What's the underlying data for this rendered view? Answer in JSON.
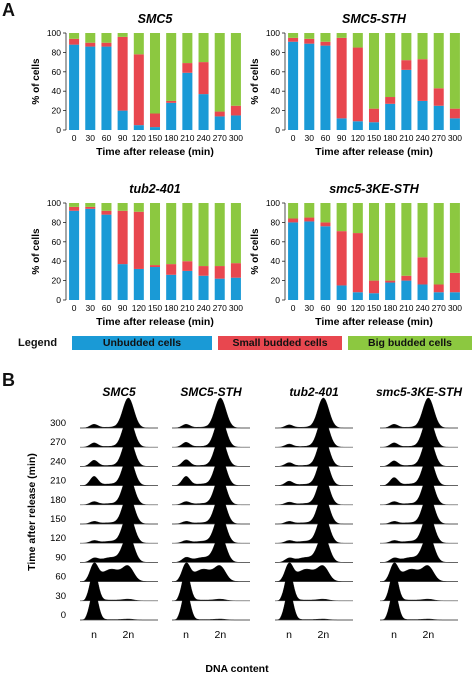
{
  "panels": {
    "a_letter": "A",
    "b_letter": "B"
  },
  "legend": {
    "title": "Legend",
    "items": [
      {
        "label": "Unbudded cells",
        "color": "#1a9ad6"
      },
      {
        "label": "Small budded cells",
        "color": "#e8474f"
      },
      {
        "label": "Big budded cells",
        "color": "#8cc840"
      }
    ]
  },
  "chart_data": [
    {
      "type": "bar",
      "stacked": true,
      "title": "SMC5",
      "xlabel": "Time after release (min)",
      "ylabel": "% of cells",
      "ylim": [
        0,
        100
      ],
      "yticks": [
        0,
        20,
        40,
        60,
        80,
        100
      ],
      "categories": [
        "0",
        "30",
        "60",
        "90",
        "120",
        "150",
        "180",
        "210",
        "240",
        "270",
        "300"
      ],
      "series": [
        {
          "name": "Unbudded cells",
          "color": "#1a9ad6",
          "values": [
            88,
            86,
            86,
            20,
            5,
            3,
            28,
            59,
            37,
            14,
            15
          ]
        },
        {
          "name": "Small budded cells",
          "color": "#e8474f",
          "values": [
            6,
            4,
            4,
            76,
            73,
            14,
            2,
            10,
            33,
            5,
            10
          ]
        },
        {
          "name": "Big budded cells",
          "color": "#8cc840",
          "values": [
            6,
            10,
            10,
            4,
            22,
            83,
            70,
            31,
            30,
            81,
            75
          ]
        }
      ]
    },
    {
      "type": "bar",
      "stacked": true,
      "title": "SMC5-STH",
      "xlabel": "Time after release (min)",
      "ylabel": "% of cells",
      "ylim": [
        0,
        100
      ],
      "yticks": [
        0,
        20,
        40,
        60,
        80,
        100
      ],
      "categories": [
        "0",
        "30",
        "60",
        "90",
        "120",
        "150",
        "180",
        "210",
        "240",
        "270",
        "300"
      ],
      "series": [
        {
          "name": "Unbudded cells",
          "color": "#1a9ad6",
          "values": [
            91,
            89,
            87,
            12,
            9,
            8,
            27,
            62,
            30,
            25,
            12
          ]
        },
        {
          "name": "Small budded cells",
          "color": "#e8474f",
          "values": [
            4,
            5,
            4,
            83,
            76,
            14,
            7,
            10,
            43,
            18,
            10
          ]
        },
        {
          "name": "Big budded cells",
          "color": "#8cc840",
          "values": [
            5,
            6,
            9,
            5,
            15,
            78,
            66,
            28,
            27,
            57,
            78
          ]
        }
      ]
    },
    {
      "type": "bar",
      "stacked": true,
      "title": "tub2-401",
      "xlabel": "Time after release (min)",
      "ylabel": "% of cells",
      "ylim": [
        0,
        100
      ],
      "yticks": [
        0,
        20,
        40,
        60,
        80,
        100
      ],
      "categories": [
        "0",
        "30",
        "60",
        "90",
        "120",
        "150",
        "180",
        "210",
        "240",
        "270",
        "300"
      ],
      "series": [
        {
          "name": "Unbudded cells",
          "color": "#1a9ad6",
          "values": [
            92,
            94,
            88,
            37,
            32,
            34,
            26,
            30,
            25,
            22,
            23
          ]
        },
        {
          "name": "Small budded cells",
          "color": "#e8474f",
          "values": [
            4,
            2,
            4,
            55,
            59,
            2,
            11,
            10,
            10,
            13,
            15
          ]
        },
        {
          "name": "Big budded cells",
          "color": "#8cc840",
          "values": [
            4,
            4,
            8,
            8,
            9,
            64,
            63,
            60,
            65,
            65,
            62
          ]
        }
      ]
    },
    {
      "type": "bar",
      "stacked": true,
      "title": "smc5-3KE-STH",
      "xlabel": "Time after release (min)",
      "ylabel": "% of cells",
      "ylim": [
        0,
        100
      ],
      "yticks": [
        0,
        20,
        40,
        60,
        80,
        100
      ],
      "categories": [
        "0",
        "30",
        "60",
        "90",
        "120",
        "150",
        "180",
        "210",
        "240",
        "270",
        "300"
      ],
      "series": [
        {
          "name": "Unbudded cells",
          "color": "#1a9ad6",
          "values": [
            80,
            81,
            76,
            15,
            8,
            7,
            18,
            20,
            16,
            8,
            8
          ]
        },
        {
          "name": "Small budded cells",
          "color": "#e8474f",
          "values": [
            4,
            4,
            4,
            56,
            61,
            13,
            2,
            5,
            28,
            8,
            20
          ]
        },
        {
          "name": "Big budded cells",
          "color": "#8cc840",
          "values": [
            16,
            15,
            20,
            29,
            31,
            80,
            80,
            75,
            56,
            84,
            72
          ]
        }
      ]
    }
  ],
  "flow": {
    "ylabel": "Time after release (min)",
    "xlabel": "DNA content",
    "times": [
      "300",
      "270",
      "240",
      "210",
      "180",
      "150",
      "120",
      "90",
      "60",
      "30",
      "0"
    ],
    "x_tick_labels": [
      "n",
      "2n"
    ],
    "columns": [
      {
        "title": "SMC5",
        "profiles": [
          [
            0.12,
            0.05,
            1.0
          ],
          [
            0.14,
            0.05,
            1.0
          ],
          [
            0.2,
            0.06,
            1.0
          ],
          [
            0.3,
            0.1,
            1.0
          ],
          [
            0.1,
            0.08,
            1.0
          ],
          [
            0.08,
            0.08,
            1.0
          ],
          [
            0.08,
            0.12,
            1.0
          ],
          [
            0.12,
            0.3,
            0.9
          ],
          [
            0.55,
            0.75,
            0.45
          ],
          [
            1.0,
            0.05,
            0.05
          ],
          [
            1.0,
            0.03,
            0.03
          ]
        ]
      },
      {
        "title": "SMC5-STH",
        "profiles": [
          [
            0.12,
            0.05,
            1.0
          ],
          [
            0.16,
            0.05,
            1.0
          ],
          [
            0.22,
            0.06,
            1.0
          ],
          [
            0.3,
            0.1,
            1.0
          ],
          [
            0.1,
            0.08,
            1.0
          ],
          [
            0.08,
            0.08,
            1.0
          ],
          [
            0.08,
            0.12,
            1.0
          ],
          [
            0.14,
            0.3,
            0.9
          ],
          [
            0.55,
            0.75,
            0.45
          ],
          [
            1.0,
            0.05,
            0.05
          ],
          [
            1.0,
            0.03,
            0.03
          ]
        ]
      },
      {
        "title": "tub2-401",
        "profiles": [
          [
            0.1,
            0.05,
            1.0
          ],
          [
            0.1,
            0.05,
            1.0
          ],
          [
            0.12,
            0.06,
            1.0
          ],
          [
            0.14,
            0.08,
            1.0
          ],
          [
            0.08,
            0.08,
            1.0
          ],
          [
            0.08,
            0.08,
            1.0
          ],
          [
            0.08,
            0.12,
            1.0
          ],
          [
            0.12,
            0.3,
            0.9
          ],
          [
            0.55,
            0.75,
            0.45
          ],
          [
            1.0,
            0.05,
            0.05
          ],
          [
            1.0,
            0.03,
            0.03
          ]
        ]
      },
      {
        "title": "smc5-3KE-STH",
        "profiles": [
          [
            0.12,
            0.05,
            1.0
          ],
          [
            0.14,
            0.05,
            1.0
          ],
          [
            0.18,
            0.06,
            1.0
          ],
          [
            0.26,
            0.1,
            1.0
          ],
          [
            0.1,
            0.08,
            1.0
          ],
          [
            0.08,
            0.08,
            1.0
          ],
          [
            0.08,
            0.12,
            1.0
          ],
          [
            0.12,
            0.3,
            0.9
          ],
          [
            0.55,
            0.75,
            0.45
          ],
          [
            1.0,
            0.05,
            0.05
          ],
          [
            1.0,
            0.03,
            0.03
          ]
        ]
      }
    ]
  }
}
